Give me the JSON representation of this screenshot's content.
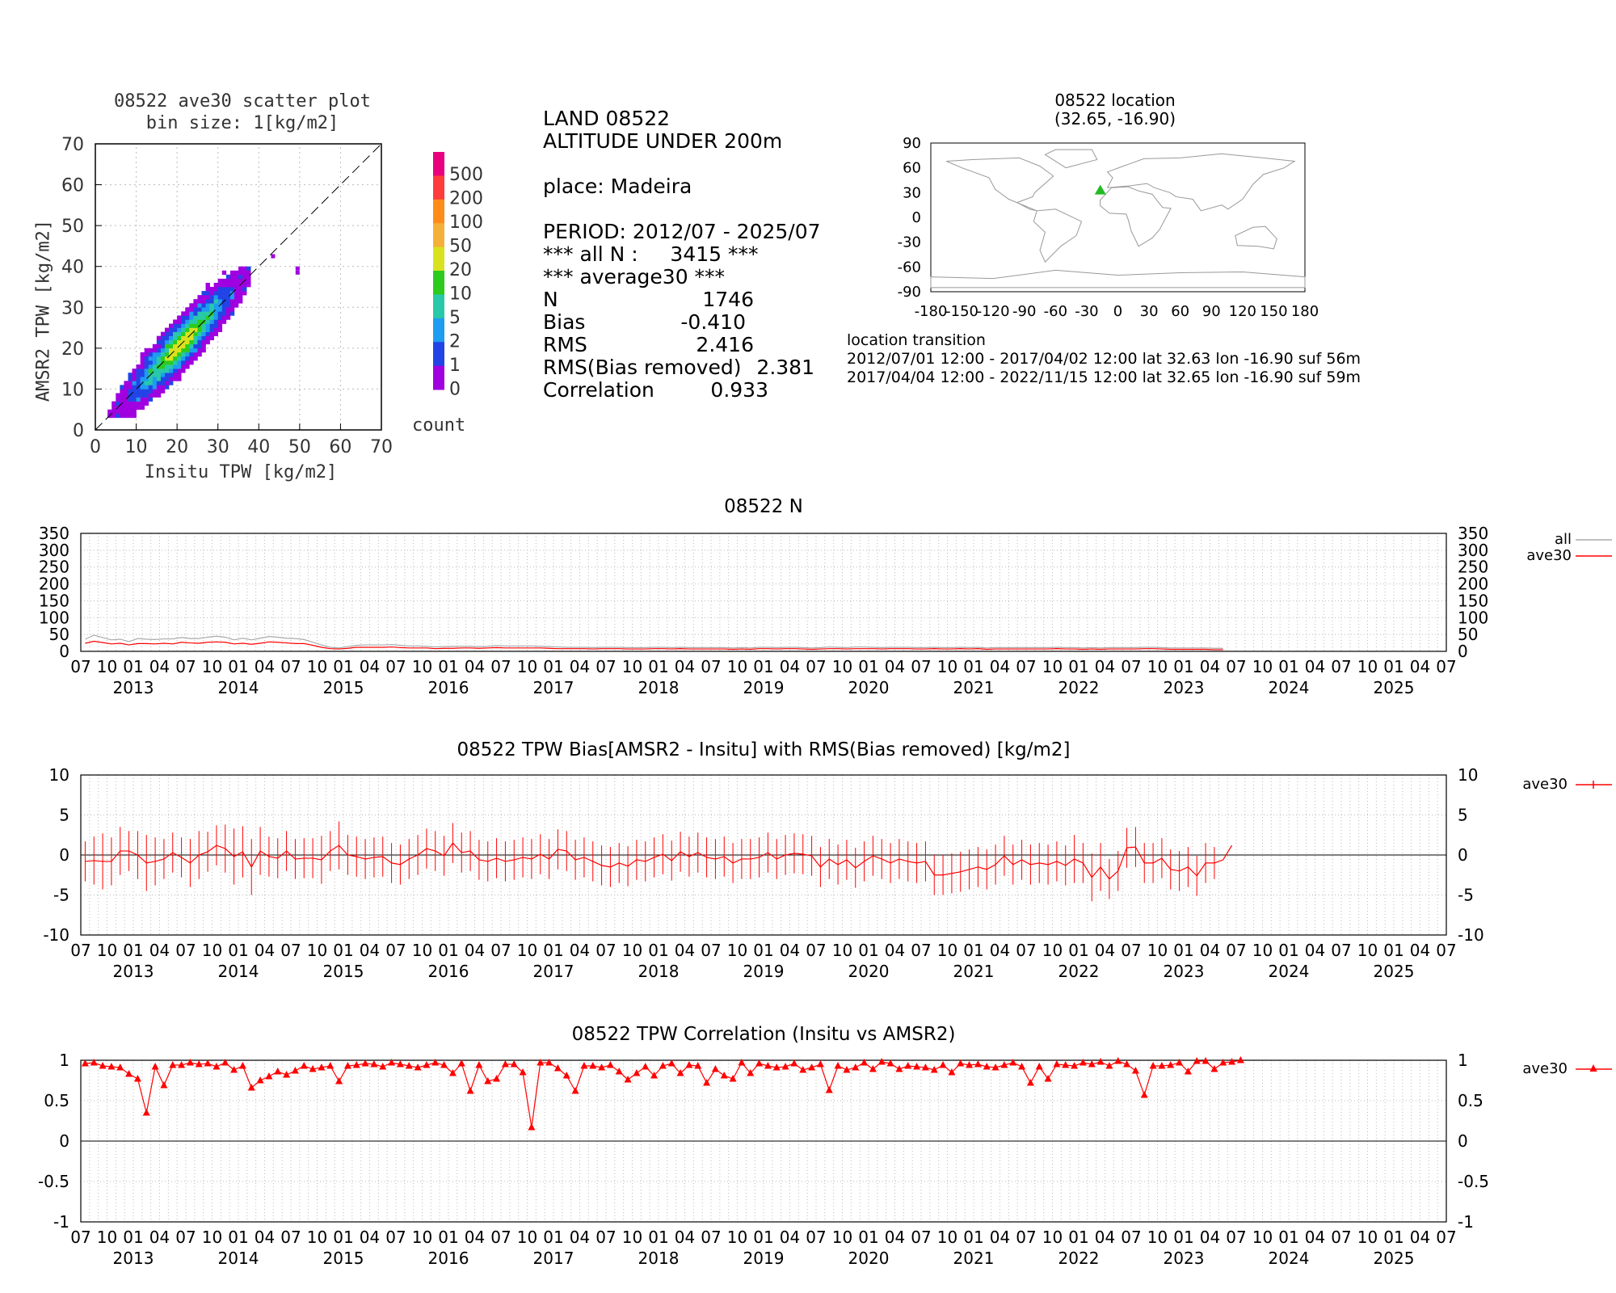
{
  "scatter": {
    "title": "08522 ave30 scatter plot",
    "subtitle": "bin size: 1[kg/m2]",
    "xlabel": "Insitu TPW [kg/m2]",
    "ylabel": "AMSR2 TPW [kg/m2]",
    "ticks": [
      "0",
      "10",
      "20",
      "30",
      "40",
      "50",
      "60",
      "70"
    ],
    "colorbar_labels": [
      "500",
      "200",
      "100",
      "50",
      "20",
      "10",
      "5",
      "2",
      "1",
      "0"
    ],
    "colorbar_title": "count",
    "colorbar_colors": [
      "#e8007e",
      "#ff3b3b",
      "#ff8c1a",
      "#f5b03a",
      "#d9e21e",
      "#2ccb1e",
      "#27c9a8",
      "#1e9cf0",
      "#2244e6",
      "#a000e0"
    ]
  },
  "stats": {
    "line1": "LAND 08522",
    "line2": "ALTITUDE UNDER 200m",
    "place": "place: Madeira",
    "period": "PERIOD: 2012/07 - 2025/07",
    "all_n": "*** all N :     3415 ***",
    "average30": "*** average30 ***",
    "rows": [
      {
        "label": "N",
        "value": "1746"
      },
      {
        "label": "Bias",
        "value": "-0.410"
      },
      {
        "label": "RMS",
        "value": "2.416"
      },
      {
        "label": "RMS(Bias removed)",
        "value": "2.381"
      },
      {
        "label": "Correlation",
        "value": "0.933"
      }
    ]
  },
  "location": {
    "title": "08522 location",
    "coords": "(32.65, -16.90)",
    "lat_ticks": [
      "90",
      "60",
      "30",
      "0",
      "-30",
      "-60",
      "-90"
    ],
    "lon_ticks": [
      "-180",
      "-150",
      "-120",
      "-90",
      "-60",
      "-30",
      "0",
      "30",
      "60",
      "90",
      "120",
      "150",
      "180"
    ],
    "marker_lat": 32.65,
    "marker_lon": -16.9,
    "marker_color": "#22bb22",
    "transition_title": "location transition",
    "transition_1": "2012/07/01 12:00 - 2017/04/02 12:00 lat 32.63 lon -16.90 suf 56m",
    "transition_2": "2017/04/04 12:00 - 2022/11/15 12:00 lat 32.65 lon -16.90 suf 59m"
  },
  "time_axis": {
    "month_labels": [
      "07",
      "10",
      "01",
      "04",
      "07",
      "10",
      "01",
      "04",
      "07",
      "10",
      "01",
      "04",
      "07",
      "10",
      "01",
      "04",
      "07",
      "10",
      "01",
      "04",
      "07",
      "10",
      "01",
      "04",
      "07",
      "10",
      "01",
      "04",
      "07",
      "10",
      "01",
      "04",
      "07",
      "10",
      "01",
      "04",
      "07",
      "10",
      "01",
      "04",
      "07",
      "10",
      "01",
      "04",
      "07",
      "10",
      "01",
      "04",
      "07",
      "10",
      "01",
      "04",
      "07"
    ],
    "years": [
      "2013",
      "2014",
      "2015",
      "2016",
      "2017",
      "2018",
      "2019",
      "2020",
      "2021",
      "2022",
      "2023",
      "2024",
      "2025"
    ]
  },
  "chart_data": [
    {
      "type": "line",
      "title": "08522 N",
      "ylim": [
        0,
        350
      ],
      "yticks": [
        "0",
        "50",
        "100",
        "150",
        "200",
        "250",
        "300",
        "350"
      ],
      "x": "months 2012/07 - 2025/07",
      "series": [
        {
          "name": "all",
          "color": "#aaaaaa",
          "values": [
            36,
            48,
            41,
            34,
            36,
            29,
            38,
            36,
            35,
            37,
            37,
            41,
            38,
            38,
            42,
            45,
            42,
            34,
            39,
            34,
            39,
            44,
            42,
            39,
            38,
            35,
            27,
            19,
            12,
            10,
            14,
            18,
            19,
            19,
            19,
            20,
            18,
            16,
            16,
            15,
            13,
            14,
            15,
            15,
            15,
            14,
            15,
            17,
            16,
            16,
            16,
            16,
            15,
            14,
            13,
            12,
            12,
            12,
            11,
            12,
            12,
            12,
            11,
            11,
            11,
            12,
            12,
            11,
            12,
            11,
            11,
            11,
            11,
            11,
            10,
            11,
            10,
            12,
            12,
            11,
            12,
            12,
            11,
            10,
            11,
            13,
            12,
            11,
            13,
            13,
            12,
            11,
            12,
            12,
            12,
            11,
            11,
            12,
            11,
            11,
            12,
            11,
            12,
            10,
            11,
            11,
            11,
            11,
            11,
            11,
            11,
            12,
            11,
            11,
            10,
            11,
            10,
            11,
            11,
            11,
            11,
            12,
            12,
            11,
            10,
            10,
            10,
            10,
            10,
            9,
            9
          ]
        },
        {
          "name": "ave30",
          "color": "#ff0000",
          "values": [
            24,
            30,
            26,
            22,
            24,
            19,
            23,
            23,
            22,
            24,
            22,
            27,
            25,
            24,
            27,
            28,
            27,
            22,
            24,
            21,
            24,
            28,
            27,
            25,
            23,
            23,
            18,
            12,
            8,
            7,
            9,
            12,
            12,
            12,
            12,
            13,
            11,
            10,
            10,
            10,
            8,
            9,
            9,
            10,
            10,
            9,
            10,
            11,
            10,
            10,
            10,
            10,
            10,
            9,
            8,
            8,
            8,
            8,
            7,
            8,
            8,
            8,
            7,
            7,
            7,
            8,
            8,
            7,
            8,
            7,
            7,
            7,
            7,
            7,
            6,
            7,
            6,
            8,
            8,
            7,
            8,
            8,
            7,
            6,
            7,
            8,
            8,
            7,
            8,
            8,
            8,
            7,
            8,
            8,
            8,
            7,
            7,
            8,
            7,
            7,
            8,
            7,
            8,
            6,
            7,
            7,
            7,
            7,
            7,
            7,
            7,
            8,
            7,
            7,
            6,
            7,
            6,
            7,
            7,
            7,
            7,
            8,
            8,
            7,
            6,
            6,
            6,
            6,
            6,
            5,
            5
          ]
        }
      ]
    },
    {
      "type": "line",
      "title": "08522 TPW Bias[AMSR2 - Insitu] with RMS(Bias removed) [kg/m2]",
      "ylim": [
        -10,
        10
      ],
      "yticks": [
        "-10",
        "-5",
        "0",
        "5",
        "10"
      ],
      "series": [
        {
          "name": "ave30",
          "color": "#ff0000",
          "bias": [
            -0.8,
            -0.7,
            -0.8,
            -0.8,
            0.5,
            0.5,
            0,
            -1,
            -0.8,
            -0.5,
            0.3,
            -0.3,
            -1,
            0,
            0.4,
            1.2,
            0.8,
            -0.2,
            0.4,
            -1.5,
            0.5,
            -0.2,
            -0.4,
            0.5,
            -0.5,
            -0.4,
            -0.4,
            -0.6,
            0.5,
            1.2,
            0,
            -0.2,
            -0.5,
            -0.3,
            -0.2,
            -1,
            -1.2,
            -0.5,
            0,
            0.8,
            0.5,
            -0.1,
            1.5,
            0.3,
            0.5,
            -0.6,
            -0.8,
            -0.4,
            -0.8,
            -0.6,
            -0.3,
            -0.5,
            0.1,
            -0.5,
            0.7,
            0.5,
            -0.6,
            -0.3,
            -0.8,
            -1.3,
            -1.5,
            -1,
            -1.4,
            -0.6,
            -0.8,
            -0.3,
            0.1,
            -0.7,
            0.4,
            -0.2,
            0.3,
            -0.3,
            -0.5,
            -0.2,
            -1,
            -0.5,
            -0.5,
            -0.3,
            0.3,
            -0.5,
            0,
            0.2,
            0.1,
            -0.1,
            -1.5,
            -0.5,
            -1.2,
            -0.6,
            -1.6,
            -0.8,
            -0.1,
            -0.5,
            -1,
            -0.5,
            -0.8,
            -1,
            -0.8,
            -2.5,
            -2.5,
            -2.3,
            -2.1,
            -1.8,
            -1.5,
            -1.8,
            -1.2,
            -0.1,
            -1.2,
            -0.6,
            -1.2,
            -1,
            -1.2,
            -0.8,
            -1.3,
            -0.5,
            -1,
            -2.8,
            -1.5,
            -3,
            -2,
            0.9,
            1,
            -1,
            -1,
            -0.4,
            -1.8,
            -2,
            -1.5,
            -2.6,
            -1,
            -1,
            -0.6,
            1.2
          ],
          "err": [
            2.5,
            3,
            3.5,
            3,
            3,
            2.5,
            3,
            3.5,
            3,
            2.5,
            2.5,
            2.5,
            3,
            3,
            2.5,
            2.5,
            3,
            3.5,
            3.2,
            3.5,
            3,
            2.5,
            2.5,
            2.5,
            2.5,
            2.5,
            2.5,
            3,
            2.5,
            3,
            2.5,
            2.5,
            2.5,
            2.5,
            2.5,
            2.5,
            2.5,
            2.5,
            2.5,
            2.5,
            2.5,
            2.5,
            2.5,
            2.5,
            2.5,
            2.5,
            2.5,
            2.5,
            2.5,
            2.5,
            2.5,
            2.5,
            2.5,
            2.5,
            2.5,
            2.5,
            2.5,
            2.5,
            2.5,
            2.5,
            2.5,
            2.5,
            2.5,
            2.5,
            2.5,
            2.5,
            2.5,
            2.5,
            2.5,
            2.5,
            2.5,
            2.5,
            2.5,
            2.5,
            2.5,
            2.5,
            2.5,
            2.5,
            2.5,
            2.5,
            2.5,
            2.5,
            2.5,
            2.5,
            2.5,
            2.5,
            2.5,
            2.5,
            2.5,
            2.5,
            2.5,
            2.5,
            2.5,
            2.5,
            2.5,
            2.5,
            2.5,
            2.5,
            2.5,
            2.5,
            2.5,
            2.5,
            2.5,
            2.5,
            2.5,
            2.5,
            2.5,
            2.5,
            2.5,
            2.5,
            2.5,
            2.5,
            2.5,
            3,
            2.5,
            3,
            3,
            2.5,
            2.5,
            2.5,
            2.5,
            2.5,
            2.5,
            2.5,
            2.5,
            2.5,
            2.5,
            2.5,
            2.5,
            2
          ]
        }
      ]
    },
    {
      "type": "line",
      "title": "08522 TPW Correlation (Insitu vs AMSR2)",
      "ylim": [
        -1,
        1
      ],
      "yticks": [
        "-1",
        "-0.5",
        "0",
        "0.5",
        "1"
      ],
      "series": [
        {
          "name": "ave30",
          "color": "#ff0000",
          "values": [
            0.96,
            0.97,
            0.93,
            0.92,
            0.91,
            0.83,
            0.77,
            0.35,
            0.92,
            0.69,
            0.94,
            0.94,
            0.97,
            0.95,
            0.96,
            0.92,
            0.97,
            0.88,
            0.93,
            0.66,
            0.75,
            0.8,
            0.86,
            0.82,
            0.87,
            0.93,
            0.89,
            0.91,
            0.93,
            0.74,
            0.93,
            0.94,
            0.96,
            0.95,
            0.92,
            0.97,
            0.95,
            0.93,
            0.91,
            0.94,
            0.97,
            0.94,
            0.84,
            0.96,
            0.62,
            0.94,
            0.74,
            0.77,
            0.95,
            0.95,
            0.85,
            0.17,
            0.97,
            0.97,
            0.9,
            0.81,
            0.62,
            0.93,
            0.93,
            0.91,
            0.94,
            0.86,
            0.76,
            0.84,
            0.92,
            0.81,
            0.93,
            0.96,
            0.84,
            0.94,
            0.93,
            0.72,
            0.89,
            0.81,
            0.77,
            0.97,
            0.84,
            0.96,
            0.93,
            0.91,
            0.92,
            0.96,
            0.88,
            0.91,
            0.95,
            0.63,
            0.93,
            0.88,
            0.91,
            0.97,
            0.89,
            0.98,
            0.96,
            0.89,
            0.93,
            0.92,
            0.91,
            0.88,
            0.94,
            0.85,
            0.96,
            0.94,
            0.95,
            0.92,
            0.91,
            0.94,
            0.97,
            0.92,
            0.72,
            0.92,
            0.77,
            0.95,
            0.94,
            0.93,
            0.97,
            0.95,
            0.98,
            0.93,
            0.99,
            0.95,
            0.87,
            0.57,
            0.93,
            0.93,
            0.94,
            0.97,
            0.86,
            0.99,
            0.99,
            0.89,
            0.97,
            0.98,
            1.0
          ]
        }
      ]
    }
  ],
  "legends": {
    "n_all": "all",
    "n_ave30": "ave30",
    "bias_ave30": "ave30",
    "corr_ave30": "ave30"
  }
}
